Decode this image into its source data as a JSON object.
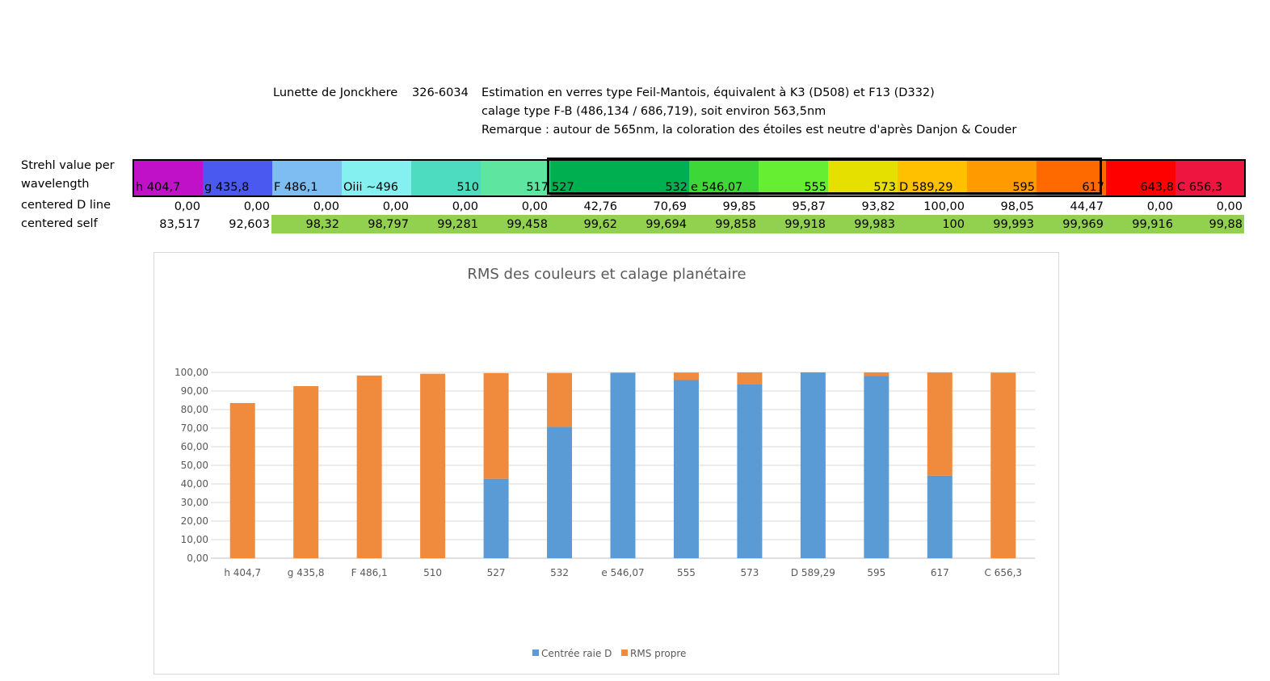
{
  "header": {
    "instrument": "Lunette de Jonckhere",
    "reference": "326-6034",
    "line1": "Estimation en verres type Feil-Mantois, équivalent à K3 (D508) et F13 (D332)",
    "line2": "calage type F-B (486,134 / 686,719), soit environ 563,5nm",
    "line3": "Remarque : autour de 565nm, la coloration des étoiles est neutre d'après Danjon & Couder"
  },
  "table": {
    "strehl_label_line1": "Strehl value per",
    "strehl_label_line2": "wavelength",
    "dline_label": "centered D line",
    "self_label": "centered self",
    "colors": {
      "self_highlight": "#92d050",
      "selection_border": "#000000"
    },
    "wavelength_cells": [
      {
        "label": "h 404,7",
        "align": "l",
        "color": "#c010c8"
      },
      {
        "label": "g 435,8",
        "align": "l",
        "color": "#4a5af0"
      },
      {
        "label": "F 486,1",
        "align": "l",
        "color": "#7dbdf2"
      },
      {
        "label": "Oiii ~496",
        "align": "l",
        "color": "#84f0f0"
      },
      {
        "label": "510",
        "align": "r",
        "color": "#4edcc0"
      },
      {
        "label": "517",
        "align": "r",
        "color": "#5ee6a0"
      },
      {
        "label": "527",
        "align": "l",
        "color": "#00b050"
      },
      {
        "label": "532",
        "align": "r",
        "color": "#00b050"
      },
      {
        "label": "e 546,07",
        "align": "l",
        "color": "#3dd838"
      },
      {
        "label": "555",
        "align": "r",
        "color": "#66ee33"
      },
      {
        "label": "573",
        "align": "r",
        "color": "#e6e000"
      },
      {
        "label": "D 589,29",
        "align": "l",
        "color": "#ffc000"
      },
      {
        "label": "595",
        "align": "r",
        "color": "#ff9a00"
      },
      {
        "label": "617",
        "align": "r",
        "color": "#ff6a00"
      },
      {
        "label": "643,8",
        "align": "r",
        "color": "#ff0000"
      },
      {
        "label": "C 656,3",
        "align": "l",
        "color": "#ee1640"
      }
    ],
    "dline_values": [
      "0,00",
      "0,00",
      "0,00",
      "0,00",
      "0,00",
      "0,00",
      "42,76",
      "70,69",
      "99,85",
      "95,87",
      "93,82",
      "100,00",
      "98,05",
      "44,47",
      "0,00",
      "0,00"
    ],
    "self_values": [
      "83,517",
      "92,603",
      "98,32",
      "98,797",
      "99,281",
      "99,458",
      "99,62",
      "99,694",
      "99,858",
      "99,918",
      "99,983",
      "100",
      "99,993",
      "99,969",
      "99,916",
      "99,88"
    ],
    "self_highlighted": [
      false,
      false,
      true,
      true,
      true,
      true,
      true,
      true,
      true,
      true,
      true,
      true,
      true,
      true,
      true,
      true
    ]
  },
  "chart_data": {
    "type": "bar",
    "stacked": true,
    "title": "RMS des couleurs et calage planétaire",
    "categories": [
      "h 404,7",
      "g 435,8",
      "F 486,1",
      "510",
      "527",
      "532",
      "e 546,07",
      "555",
      "573",
      "D 589,29",
      "595",
      "617",
      "C 656,3"
    ],
    "series": [
      {
        "name": "Centrée raie D",
        "color": "#5b9bd5",
        "values": [
          0,
          0,
          0,
          0,
          42.76,
          70.69,
          99.85,
          95.87,
          93.82,
          100,
          98.05,
          44.47,
          0
        ]
      },
      {
        "name": "RMS propre",
        "color": "#f08a3c",
        "values": [
          83.517,
          92.603,
          98.32,
          99.281,
          56.86,
          29.004,
          0.008,
          4.048,
          6.163,
          0,
          1.943,
          55.499,
          99.88
        ]
      }
    ],
    "yticks": [
      "0,00",
      "10,00",
      "20,00",
      "30,00",
      "40,00",
      "50,00",
      "60,00",
      "70,00",
      "80,00",
      "90,00",
      "100,00"
    ],
    "ylim": [
      0,
      100
    ],
    "grid": true,
    "legend": "bottom",
    "xlabel": "",
    "ylabel": ""
  }
}
